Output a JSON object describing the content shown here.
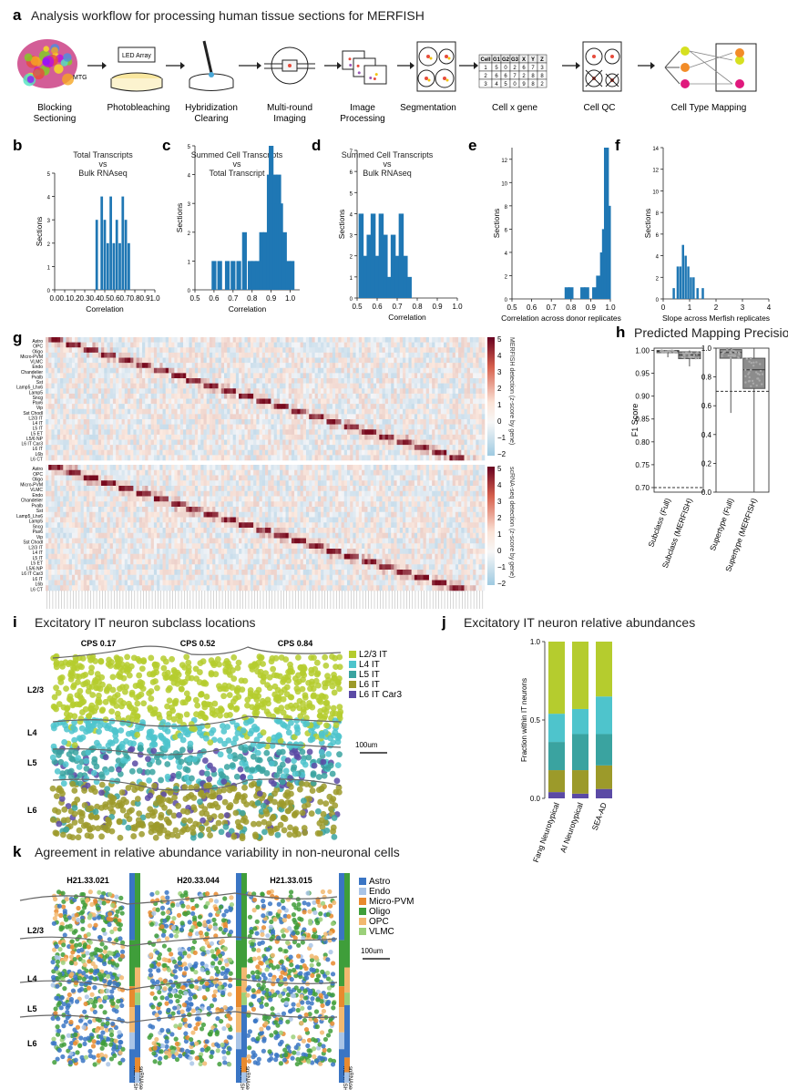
{
  "panel_a": {
    "letter": "a",
    "title": "Analysis workflow for processing human tissue sections for MERFISH",
    "brain_label": "MTG",
    "led_label": "LED Array",
    "steps": [
      {
        "label1": "Blocking",
        "label2": "Sectioning"
      },
      {
        "label1": "Photobleaching",
        "label2": ""
      },
      {
        "label1": "Hybridization",
        "label2": "Clearing"
      },
      {
        "label1": "Multi-round",
        "label2": "Imaging"
      },
      {
        "label1": "Image",
        "label2": "Processing"
      },
      {
        "label1": "Segmentation",
        "label2": ""
      },
      {
        "label1": "Cell x gene",
        "label2": ""
      },
      {
        "label1": "Cell QC",
        "label2": ""
      },
      {
        "label1": "Cell Type Mapping",
        "label2": ""
      }
    ],
    "table_header": [
      "Cell",
      "G1",
      "G2",
      "G3",
      "X",
      "Y",
      "Z"
    ],
    "table_rows": [
      [
        "1",
        "5",
        "0",
        "2",
        "6",
        "7",
        "3"
      ],
      [
        "2",
        "6",
        "6",
        "7",
        "2",
        "8",
        "8"
      ],
      [
        "3",
        "4",
        "5",
        "0",
        "9",
        "8",
        "2"
      ]
    ]
  },
  "panel_b": {
    "letter": "b",
    "title1": "Total Transcripts",
    "title2": "vs",
    "title3": "Bulk RNAseq"
  },
  "panel_c": {
    "letter": "c",
    "title1": "Summed Cell Transcripts",
    "title2": "vs",
    "title3": "Total Transcript"
  },
  "panel_d": {
    "letter": "d",
    "title1": "Summed Cell Transcripts",
    "title2": "vs",
    "title3": "Bulk RNAseq"
  },
  "panel_e": {
    "letter": "e"
  },
  "panel_f": {
    "letter": "f"
  },
  "panel_g": {
    "letter": "g",
    "top_rows": [
      "Astro",
      "OPC",
      "Oligo",
      "Micro-PVM",
      "VLMC",
      "Endo",
      "Chandelier",
      "Pvalb",
      "Sst",
      "Lamp5_Lhx6",
      "Lamp5",
      "Sncg",
      "Pax6",
      "Vip",
      "Sst Chodl",
      "L2/3 IT",
      "L4 IT",
      "L5 IT",
      "L5 ET",
      "L5/6 NP",
      "L6 IT Car3",
      "L6 IT",
      "L6b",
      "L6 CT"
    ],
    "bottom_rows": [
      "Astro",
      "OPC",
      "Oligo",
      "Micro-PVM",
      "VLMC",
      "Endo",
      "Chandelier",
      "Pvalb",
      "Sst",
      "Lamp5_Lhx6",
      "Lamp5",
      "Sncg",
      "Pax6",
      "Vip",
      "Sst Chodl",
      "L2/3 IT",
      "L4 IT",
      "L5 IT",
      "L5 ET",
      "L5/6 NP",
      "L6 IT Car3",
      "L6 IT",
      "L6b",
      "L6 CT"
    ],
    "top_colorbar_label": "MERFISH detection (z-score by gene)",
    "bottom_colorbar_label": "scRNA-seq detection (z-score by gene)",
    "top_ticks": [
      "5",
      "4",
      "3",
      "2",
      "1",
      "0",
      "−1",
      "−2"
    ],
    "bottom_ticks": [
      "5",
      "4",
      "3",
      "2",
      "1",
      "0",
      "−1",
      "−2"
    ]
  },
  "panel_h": {
    "letter": "h",
    "title": "Predicted Mapping Precision"
  },
  "panel_i": {
    "letter": "i",
    "title": "Excitatory IT neuron subclass locations",
    "cps": [
      "CPS 0.17",
      "CPS 0.52",
      "CPS 0.84"
    ],
    "layers": [
      "L2/3",
      "L4",
      "L5",
      "L6"
    ],
    "legend": [
      {
        "label": "L2/3 IT",
        "color": "#b5cc2e"
      },
      {
        "label": "L4 IT",
        "color": "#4ec4cc"
      },
      {
        "label": "L5 IT",
        "color": "#3aa3a0"
      },
      {
        "label": "L6 IT",
        "color": "#9c9a2a"
      },
      {
        "label": "L6 IT Car3",
        "color": "#5b4aa5"
      }
    ],
    "scale": "100um"
  },
  "panel_j": {
    "letter": "j",
    "title": "Excitatory IT neuron relative abundances"
  },
  "panel_k": {
    "letter": "k",
    "title": "Agreement in relative abundance variability in non-neuronal cells",
    "donors": [
      "H21.33.021",
      "H20.33.044",
      "H21.33.015"
    ],
    "layers": [
      "L2/3",
      "L4",
      "L5",
      "L6"
    ],
    "bar_labels": [
      "MERFISH",
      "snRNAseq"
    ],
    "legend": [
      {
        "label": "Astro",
        "color": "#3a75c4"
      },
      {
        "label": "Endo",
        "color": "#a9c4e6"
      },
      {
        "label": "Micro-PVM",
        "color": "#e88a2e"
      },
      {
        "label": "Oligo",
        "color": "#3f9e3a"
      },
      {
        "label": "OPC",
        "color": "#f2b870"
      },
      {
        "label": "VLMC",
        "color": "#9bd07a"
      }
    ],
    "scale": "100um"
  },
  "chart_data": [
    {
      "panel": "b",
      "type": "bar",
      "title": "Total Transcripts vs Bulk RNAseq",
      "xlabel": "Correlation",
      "ylabel": "Sections",
      "xlim": [
        0,
        1.0
      ],
      "ylim": [
        0,
        5
      ],
      "xticks": [
        "0.0",
        "0.1",
        "0.2",
        "0.3",
        "0.4",
        "0.5",
        "0.6",
        "0.7",
        "0.8",
        "0.9",
        "1.0"
      ],
      "x": [
        0.42,
        0.47,
        0.5,
        0.53,
        0.56,
        0.59,
        0.62,
        0.65,
        0.68,
        0.71,
        0.74
      ],
      "values": [
        3,
        4,
        3,
        2,
        4,
        2,
        3,
        2,
        4,
        3,
        2
      ]
    },
    {
      "panel": "c",
      "type": "bar",
      "title": "Summed Cell Transcripts vs Total Transcript",
      "xlabel": "Correlation",
      "ylabel": "Sections",
      "xlim": [
        0.5,
        1.05
      ],
      "ylim": [
        0,
        5
      ],
      "xticks": [
        "0.5",
        "0.6",
        "0.7",
        "0.8",
        "0.9",
        "1.0"
      ],
      "x": [
        0.6,
        0.63,
        0.67,
        0.7,
        0.73,
        0.76,
        0.79,
        0.81,
        0.83,
        0.85,
        0.87,
        0.89,
        0.9,
        0.91,
        0.92,
        0.93,
        0.94,
        0.95,
        0.97,
        0.99,
        1.01
      ],
      "values": [
        1,
        1,
        1,
        1,
        1,
        2,
        1,
        1,
        1,
        2,
        2,
        4,
        5,
        3,
        4,
        3,
        4,
        3,
        2,
        1,
        1
      ]
    },
    {
      "panel": "d",
      "type": "bar",
      "title": "Summed Cell Transcripts vs Bulk RNAseq",
      "xlabel": "Correlation",
      "ylabel": "Sections",
      "xlim": [
        0.5,
        1.0
      ],
      "ylim": [
        0,
        7
      ],
      "xticks": [
        "0.5",
        "0.6",
        "0.7",
        "0.8",
        "0.9",
        "1.0"
      ],
      "x": [
        0.52,
        0.54,
        0.56,
        0.58,
        0.6,
        0.62,
        0.64,
        0.66,
        0.68,
        0.7,
        0.72,
        0.74,
        0.76
      ],
      "values": [
        4,
        2,
        3,
        4,
        2,
        4,
        3,
        1,
        3,
        2,
        4,
        2,
        1
      ]
    },
    {
      "panel": "e",
      "type": "bar",
      "xlabel": "Correlation across donor replicates",
      "ylabel": "Sections",
      "xlim": [
        0.5,
        1.0
      ],
      "ylim": [
        0,
        13
      ],
      "xticks": [
        "0.5",
        "0.6",
        "0.7",
        "0.8",
        "0.9",
        "1.0"
      ],
      "x": [
        0.78,
        0.8,
        0.86,
        0.88,
        0.92,
        0.94,
        0.96,
        0.97,
        0.98,
        0.99
      ],
      "values": [
        1,
        1,
        1,
        1,
        1,
        2,
        4,
        6,
        13,
        8
      ]
    },
    {
      "panel": "f",
      "type": "bar",
      "xlabel": "Slope across Merfish replicates",
      "ylabel": "Sections",
      "xlim": [
        0,
        4
      ],
      "ylim": [
        0,
        14
      ],
      "xticks": [
        "0",
        "1",
        "2",
        "3",
        "4"
      ],
      "x": [
        0.4,
        0.55,
        0.65,
        0.75,
        0.85,
        0.95,
        1.05,
        1.15,
        1.3,
        1.5
      ],
      "values": [
        1,
        3,
        3,
        5,
        4,
        3,
        2,
        2,
        1,
        1
      ]
    },
    {
      "panel": "h",
      "type": "box",
      "ylabel": "F1 Score",
      "left": {
        "ylim": [
          0.69,
          1.005
        ],
        "yticks": [
          "0.70",
          "0.75",
          "0.80",
          "0.85",
          "0.90",
          "0.95",
          "1.00"
        ],
        "categories": [
          "Subclass (Full)",
          "Subclass (MERFISH)"
        ],
        "threshold": 0.7
      },
      "right": {
        "ylim": [
          0,
          1.0
        ],
        "yticks": [
          "0.0",
          "0.2",
          "0.4",
          "0.6",
          "0.8",
          "1.0"
        ],
        "categories": [
          "Supertype (Full)",
          "Supertype (MERFISH)"
        ],
        "threshold": 0.7
      }
    },
    {
      "panel": "j",
      "type": "bar",
      "stacked": true,
      "ylabel": "Fraction within IT neurons",
      "ylim": [
        0,
        1.0
      ],
      "yticks": [
        "0.0",
        "0.5",
        "1.0"
      ],
      "categories": [
        "Fang Neurotypical",
        "AI Neurotypical",
        "SEA-AD"
      ],
      "series": [
        {
          "name": "L6 IT Car3",
          "color": "#5b4aa5",
          "values": [
            0.04,
            0.03,
            0.06
          ]
        },
        {
          "name": "L6 IT",
          "color": "#9c9a2a",
          "values": [
            0.14,
            0.15,
            0.15
          ]
        },
        {
          "name": "L5 IT",
          "color": "#3aa3a0",
          "values": [
            0.18,
            0.23,
            0.2
          ]
        },
        {
          "name": "L4 IT",
          "color": "#4ec4cc",
          "values": [
            0.18,
            0.16,
            0.24
          ]
        },
        {
          "name": "L2/3 IT",
          "color": "#b5cc2e",
          "values": [
            0.46,
            0.43,
            0.35
          ]
        }
      ]
    }
  ]
}
